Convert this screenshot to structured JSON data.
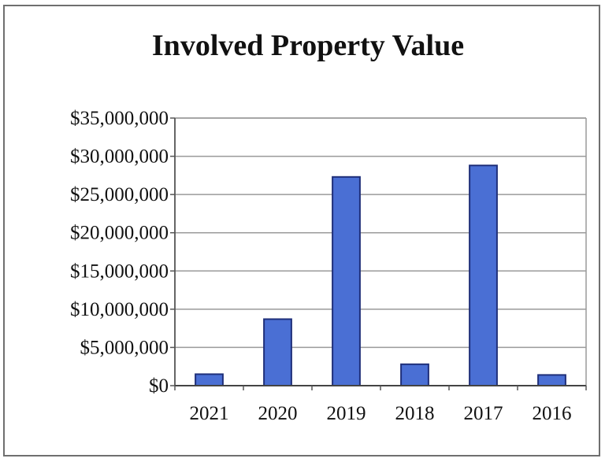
{
  "chart_data": {
    "type": "bar",
    "title": "Involved Property Value",
    "xlabel": "",
    "ylabel": "",
    "categories": [
      "2021",
      "2020",
      "2019",
      "2018",
      "2017",
      "2016"
    ],
    "values": [
      1500000,
      8700000,
      27300000,
      2800000,
      28800000,
      1400000
    ],
    "ylim": [
      0,
      35000000
    ],
    "yticks": [
      0,
      5000000,
      10000000,
      15000000,
      20000000,
      25000000,
      30000000,
      35000000
    ],
    "ytick_labels": [
      "$0",
      "$5,000,000",
      "$10,000,000",
      "$15,000,000",
      "$20,000,000",
      "$25,000,000",
      "$30,000,000",
      "$35,000,000"
    ],
    "grid": true,
    "legend": "none",
    "bar_color": "#4a6fd4",
    "bar_edge_color": "#1f2f7a"
  }
}
